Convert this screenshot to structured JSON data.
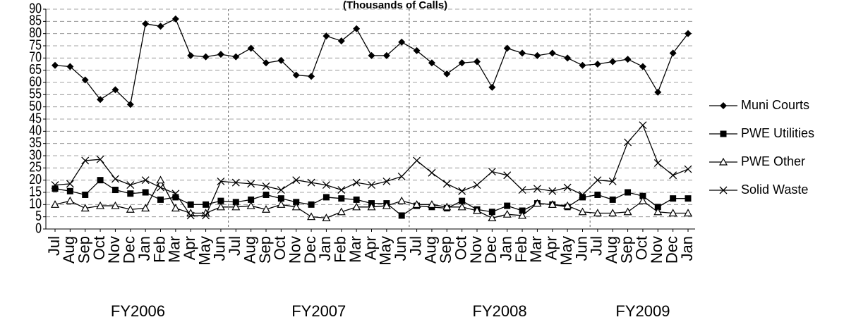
{
  "chart_data": {
    "type": "line",
    "title": "(Thousands of Calls)",
    "categories": [
      "Jul",
      "Aug",
      "Sep",
      "Oct",
      "Nov",
      "Dec",
      "Jan",
      "Feb",
      "Mar",
      "Apr",
      "May",
      "Jun",
      "Jul",
      "Aug",
      "Sep",
      "Oct",
      "Nov",
      "Dec",
      "Jan",
      "Feb",
      "Mar",
      "Apr",
      "May",
      "Jun",
      "Jul",
      "Aug",
      "Sep",
      "Oct",
      "Nov",
      "Dec",
      "Jan",
      "Feb",
      "Mar",
      "Apr",
      "May",
      "Jun",
      "Jul",
      "Aug",
      "Sep",
      "Oct",
      "Nov",
      "Dec",
      "Jan"
    ],
    "fiscal_years": [
      "FY2006",
      "FY2007",
      "FY2008",
      "FY2009"
    ],
    "ylim": [
      0,
      90
    ],
    "yticks": [
      0,
      5,
      10,
      15,
      20,
      25,
      30,
      35,
      40,
      45,
      50,
      55,
      60,
      65,
      70,
      75,
      80,
      85,
      90
    ],
    "grid": true,
    "legend": "right",
    "series": [
      {
        "name": "Muni Courts",
        "color": "#000000",
        "marker": "diamond",
        "values": [
          67,
          66.5,
          61,
          53,
          57,
          51,
          84,
          83,
          86,
          71,
          70.5,
          71.5,
          70.5,
          74,
          68,
          69,
          63,
          62.5,
          79,
          77,
          82,
          71,
          71,
          76.5,
          73,
          68,
          63.5,
          68,
          68.5,
          58,
          74,
          72,
          71,
          72,
          70,
          67,
          67.5,
          68.5,
          69.5,
          66.5,
          56,
          72,
          80
        ]
      },
      {
        "name": "PWE  Utilities",
        "color": "#000000",
        "marker": "square",
        "values": [
          16.5,
          15.5,
          14,
          20,
          16,
          14.5,
          15,
          12,
          13,
          10,
          10,
          11.5,
          11,
          12,
          14,
          12.5,
          11,
          10,
          13,
          12.5,
          12,
          10.5,
          10.5,
          5.5,
          9.5,
          9,
          8.5,
          11.5,
          8,
          7,
          9.5,
          7.5,
          10.5,
          10,
          9,
          13,
          14,
          12,
          15,
          13.5,
          9,
          12.5,
          12.5
        ]
      },
      {
        "name": "PWE Other",
        "color": "#000000",
        "marker": "triangle",
        "values": [
          10,
          11.5,
          8.5,
          9.5,
          9.5,
          8,
          8.5,
          20,
          8.5,
          6.5,
          6.5,
          9,
          9,
          9.5,
          8,
          10,
          9,
          5,
          4.5,
          7,
          9,
          9,
          9.5,
          11.5,
          10,
          10,
          9,
          9,
          7.5,
          4.5,
          6,
          5.5,
          10.5,
          10,
          9.5,
          7,
          6.5,
          6.5,
          7,
          11.5,
          7,
          6.5,
          6.5
        ]
      },
      {
        "name": "Solid Waste",
        "color": "#000000",
        "marker": "cross",
        "values": [
          18,
          18.5,
          28,
          28.5,
          20.5,
          18,
          20,
          17,
          14.5,
          5.5,
          5.5,
          19.5,
          19,
          18.5,
          17.5,
          16,
          20,
          19,
          18,
          16,
          19,
          18,
          19.5,
          21.5,
          28,
          23,
          18.5,
          15.5,
          18,
          23.5,
          22,
          16,
          16.5,
          15.5,
          17,
          14,
          20,
          19.5,
          35.5,
          42.5,
          27,
          22,
          24.5
        ]
      }
    ]
  }
}
